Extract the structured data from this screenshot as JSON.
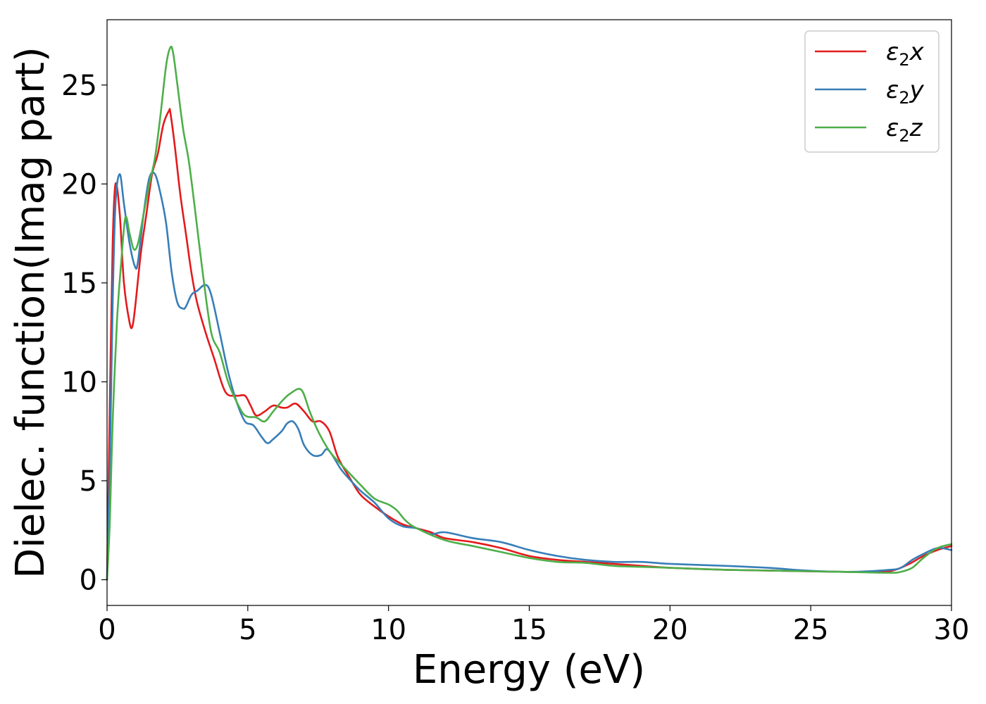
{
  "chart_data": {
    "type": "line",
    "xlabel": "Energy (eV)",
    "ylabel": "Dielec. function(Imag part)",
    "xlim": [
      0,
      30
    ],
    "ylim": [
      -1.3,
      28.3
    ],
    "xticks": [
      0,
      5,
      10,
      15,
      20,
      25,
      30
    ],
    "yticks": [
      0,
      5,
      10,
      15,
      20,
      25
    ],
    "grid": false,
    "legend_position": "top-right",
    "series": [
      {
        "name": "ε₂x",
        "legend_base": "ε",
        "legend_sub": "2",
        "legend_suffix": "x",
        "color": "#e41a1c",
        "x": [
          0,
          0.1,
          0.2,
          0.3,
          0.45,
          0.6,
          0.8,
          0.9,
          1.0,
          1.2,
          1.4,
          1.6,
          1.8,
          2.0,
          2.2,
          2.25,
          2.4,
          2.6,
          2.8,
          3.0,
          3.2,
          3.5,
          3.8,
          4.2,
          4.6,
          4.9,
          5.1,
          5.3,
          5.6,
          5.9,
          6.2,
          6.4,
          6.7,
          7.0,
          7.3,
          7.6,
          7.9,
          8.2,
          8.6,
          9.0,
          9.5,
          10.0,
          10.5,
          11.0,
          11.5,
          12.0,
          13.0,
          14.0,
          15.0,
          16.0,
          17.0,
          18.0,
          19.0,
          20.0,
          22.0,
          24.0,
          26.0,
          27.5,
          28.0,
          28.5,
          29.0,
          29.5,
          30.0
        ],
        "y": [
          0,
          9,
          17,
          20,
          18.5,
          15,
          13,
          12.8,
          13.8,
          16.5,
          18.5,
          20.5,
          21.5,
          23,
          23.7,
          23.6,
          22,
          19.5,
          17.5,
          15.5,
          14,
          12.5,
          11.2,
          9.5,
          9.3,
          9.3,
          8.8,
          8.3,
          8.5,
          8.8,
          8.7,
          8.7,
          8.9,
          8.5,
          8.0,
          8.0,
          7.5,
          6.2,
          5.2,
          4.3,
          3.7,
          3.2,
          2.8,
          2.6,
          2.4,
          2.1,
          1.9,
          1.6,
          1.2,
          1.0,
          0.9,
          0.8,
          0.7,
          0.6,
          0.5,
          0.45,
          0.4,
          0.4,
          0.5,
          0.8,
          1.2,
          1.5,
          1.7
        ]
      },
      {
        "name": "ε₂y",
        "legend_base": "ε",
        "legend_sub": "2",
        "legend_suffix": "y",
        "color": "#377eb8",
        "x": [
          0,
          0.1,
          0.2,
          0.3,
          0.45,
          0.6,
          0.8,
          1.0,
          1.1,
          1.3,
          1.5,
          1.7,
          1.9,
          2.1,
          2.3,
          2.5,
          2.7,
          2.8,
          3.0,
          3.2,
          3.5,
          3.7,
          4.0,
          4.3,
          4.6,
          4.9,
          5.2,
          5.5,
          5.7,
          5.9,
          6.2,
          6.4,
          6.6,
          6.8,
          7.0,
          7.3,
          7.6,
          7.8,
          8.0,
          8.3,
          8.6,
          9.0,
          9.5,
          10.0,
          10.5,
          11.0,
          11.5,
          12.0,
          13.0,
          14.0,
          15.0,
          16.0,
          17.0,
          18.0,
          19.0,
          20.0,
          22.0,
          23.5,
          25.0,
          26.5,
          27.8,
          28.2,
          28.6,
          29.0,
          29.5,
          30.0
        ],
        "y": [
          0,
          6,
          14,
          19,
          20.5,
          19,
          17,
          15.8,
          16.1,
          18.5,
          20.3,
          20.5,
          19.5,
          18,
          15.5,
          14,
          13.7,
          13.8,
          14.4,
          14.6,
          14.9,
          14.4,
          12.5,
          10.5,
          9.0,
          8.0,
          7.8,
          7.2,
          6.9,
          7.1,
          7.5,
          7.9,
          8.0,
          7.6,
          6.8,
          6.3,
          6.3,
          6.6,
          6.3,
          5.6,
          5.1,
          4.5,
          3.9,
          3.1,
          2.7,
          2.6,
          2.3,
          2.4,
          2.1,
          1.9,
          1.5,
          1.2,
          1.0,
          0.9,
          0.9,
          0.8,
          0.7,
          0.6,
          0.45,
          0.4,
          0.5,
          0.6,
          1.0,
          1.3,
          1.6,
          1.5
        ]
      },
      {
        "name": "ε₂z",
        "legend_base": "ε",
        "legend_sub": "2",
        "legend_suffix": "z",
        "color": "#4daf4a",
        "x": [
          0,
          0.1,
          0.2,
          0.35,
          0.5,
          0.65,
          0.8,
          0.95,
          1.1,
          1.3,
          1.5,
          1.7,
          1.9,
          2.1,
          2.25,
          2.35,
          2.5,
          2.7,
          2.9,
          3.1,
          3.4,
          3.7,
          4.0,
          4.3,
          4.6,
          4.9,
          5.3,
          5.6,
          5.9,
          6.2,
          6.5,
          6.9,
          7.2,
          7.5,
          7.9,
          8.2,
          8.6,
          9.0,
          9.5,
          10.0,
          10.3,
          10.6,
          11.0,
          12.0,
          13.0,
          14.0,
          15.0,
          16.0,
          17.0,
          18.0,
          19.0,
          20.0,
          22.0,
          24.0,
          26.0,
          27.8,
          28.2,
          28.6,
          29.0,
          29.5,
          30.0
        ],
        "y": [
          0,
          3,
          8,
          13,
          16,
          18.3,
          17.5,
          16.7,
          17,
          18.5,
          20,
          21.3,
          23.5,
          26,
          26.9,
          26.6,
          25,
          22.8,
          21.2,
          19,
          15.5,
          12.5,
          11.5,
          10,
          9.0,
          8.3,
          8.2,
          8.0,
          8.5,
          9.0,
          9.4,
          9.6,
          8.5,
          7.5,
          6.5,
          6.0,
          5.4,
          4.8,
          4.1,
          3.8,
          3.5,
          3.0,
          2.6,
          2.0,
          1.7,
          1.4,
          1.1,
          0.9,
          0.85,
          0.7,
          0.65,
          0.6,
          0.5,
          0.45,
          0.4,
          0.35,
          0.4,
          0.6,
          1.1,
          1.6,
          1.8
        ]
      }
    ]
  }
}
